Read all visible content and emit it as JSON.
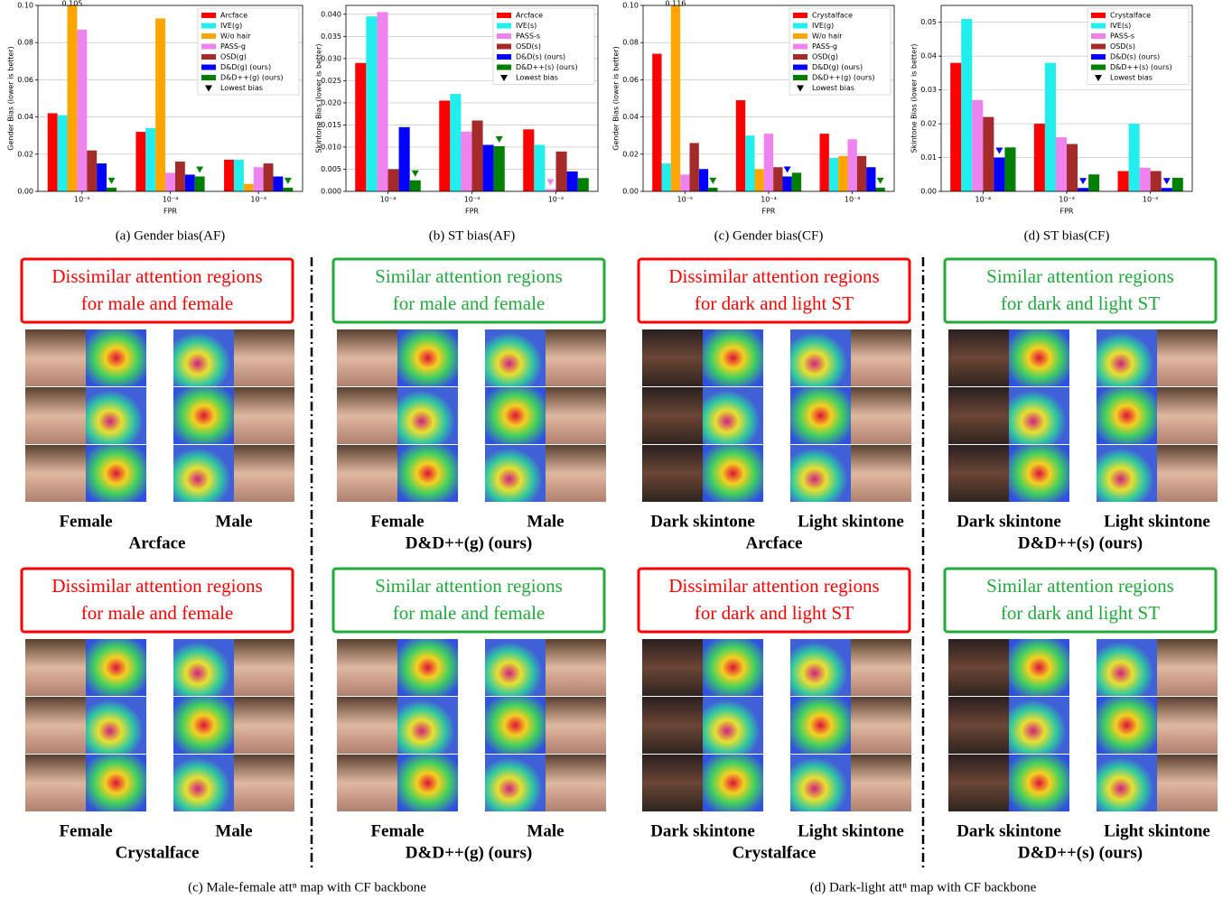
{
  "chart_data": [
    {
      "type": "bar",
      "caption": "(a) Gender bias(AF)",
      "xlabel": "FPR",
      "ylabel": "Gender Bias (lower is better)",
      "categories": [
        "10⁻⁵",
        "10⁻⁴",
        "10⁻³"
      ],
      "ylim": [
        0,
        0.1
      ],
      "yticks": [
        {
          "value": 0,
          "label": "0.00"
        },
        {
          "value": 0.02,
          "label": "0.02"
        },
        {
          "value": 0.04,
          "label": "0.04"
        },
        {
          "value": 0.06,
          "label": "0.06"
        },
        {
          "value": 0.08,
          "label": "0.08"
        },
        {
          "value": 0.1,
          "label": "0.10"
        }
      ],
      "grid": true,
      "legend": "upper right",
      "marker_label": "Lowest bias",
      "series": [
        {
          "name": "Arcface",
          "color": "#ff0000",
          "values": [
            0.042,
            0.032,
            0.017
          ]
        },
        {
          "name": "IVE(g)",
          "color": "#22eeee",
          "values": [
            0.041,
            0.034,
            0.017
          ]
        },
        {
          "name": "W/o hair",
          "color": "#ffa500",
          "values": [
            0.105,
            0.093,
            0.004
          ],
          "value_labels": [
            "0.105",
            null,
            null
          ]
        },
        {
          "name": "PASS-g",
          "color": "#ee82ee",
          "values": [
            0.087,
            0.01,
            0.013
          ]
        },
        {
          "name": "OSD(g)",
          "color": "#a52a2a",
          "values": [
            0.022,
            0.016,
            0.015
          ]
        },
        {
          "name": "D&D(g) (ours)",
          "color": "#0000ff",
          "values": [
            0.015,
            0.009,
            0.008
          ]
        },
        {
          "name": "D&D++(g) (ours)",
          "color": "#008000",
          "values": [
            0.002,
            0.008,
            0.002
          ]
        }
      ]
    },
    {
      "type": "bar",
      "caption": "(b) ST bias(AF)",
      "xlabel": "FPR",
      "ylabel": "Skintone Bias (lower is better)",
      "categories": [
        "10⁻⁴",
        "10⁻³",
        "10⁻²"
      ],
      "ylim": [
        0,
        0.042
      ],
      "yticks": [
        {
          "value": 0,
          "label": "0.000"
        },
        {
          "value": 0.005,
          "label": "0.005"
        },
        {
          "value": 0.01,
          "label": "0.010"
        },
        {
          "value": 0.015,
          "label": "0.015"
        },
        {
          "value": 0.02,
          "label": "0.020"
        },
        {
          "value": 0.025,
          "label": "0.025"
        },
        {
          "value": 0.03,
          "label": "0.030"
        },
        {
          "value": 0.035,
          "label": "0.035"
        },
        {
          "value": 0.04,
          "label": "0.040"
        }
      ],
      "grid": true,
      "legend": "upper right",
      "marker_label": "Lowest bias",
      "series": [
        {
          "name": "Arcface",
          "color": "#ff0000",
          "values": [
            0.029,
            0.0205,
            0.014
          ]
        },
        {
          "name": "IVE(s)",
          "color": "#22eeee",
          "values": [
            0.0395,
            0.022,
            0.0105
          ]
        },
        {
          "name": "PASS-s",
          "color": "#ee82ee",
          "values": [
            0.0405,
            0.0135,
            0.0005
          ]
        },
        {
          "name": "OSD(s)",
          "color": "#a52a2a",
          "values": [
            0.005,
            0.016,
            0.009
          ]
        },
        {
          "name": "D&D(s) (ours)",
          "color": "#0000ff",
          "values": [
            0.0145,
            0.0105,
            0.0045
          ]
        },
        {
          "name": "D&D++(s) (ours)",
          "color": "#008000",
          "values": [
            0.0025,
            0.0102,
            0.003
          ]
        }
      ]
    },
    {
      "type": "bar",
      "caption": "(c) Gender bias(CF)",
      "xlabel": "FPR",
      "ylabel": "Gender Bias (lower is better)",
      "categories": [
        "10⁻⁵",
        "10⁻⁴",
        "10⁻³"
      ],
      "ylim": [
        0,
        0.1
      ],
      "yticks": [
        {
          "value": 0,
          "label": "0.00"
        },
        {
          "value": 0.02,
          "label": "0.02"
        },
        {
          "value": 0.04,
          "label": "0.04"
        },
        {
          "value": 0.06,
          "label": "0.06"
        },
        {
          "value": 0.08,
          "label": "0.08"
        },
        {
          "value": 0.1,
          "label": "0.10"
        }
      ],
      "grid": true,
      "legend": "upper right",
      "marker_label": "Lowest bias",
      "series": [
        {
          "name": "Crystalface",
          "color": "#ff0000",
          "values": [
            0.074,
            0.049,
            0.031
          ]
        },
        {
          "name": "IVE(g)",
          "color": "#22eeee",
          "values": [
            0.015,
            0.03,
            0.018
          ]
        },
        {
          "name": "W/o hair",
          "color": "#ffa500",
          "values": [
            0.116,
            0.012,
            0.019
          ],
          "value_labels": [
            "0.116",
            null,
            null
          ]
        },
        {
          "name": "PASS-g",
          "color": "#ee82ee",
          "values": [
            0.009,
            0.031,
            0.028
          ]
        },
        {
          "name": "OSD(g)",
          "color": "#a52a2a",
          "values": [
            0.026,
            0.013,
            0.019
          ]
        },
        {
          "name": "D&D(g) (ours)",
          "color": "#0000ff",
          "values": [
            0.012,
            0.008,
            0.013
          ]
        },
        {
          "name": "D&D++(g) (ours)",
          "color": "#008000",
          "values": [
            0.002,
            0.01,
            0.002
          ]
        }
      ]
    },
    {
      "type": "bar",
      "caption": "(d) ST bias(CF)",
      "xlabel": "FPR",
      "ylabel": "Skintone Bias (lower is better)",
      "categories": [
        "10⁻⁴",
        "10⁻³",
        "10⁻²"
      ],
      "ylim": [
        0,
        0.055
      ],
      "yticks": [
        {
          "value": 0,
          "label": "0.00"
        },
        {
          "value": 0.01,
          "label": "0.01"
        },
        {
          "value": 0.02,
          "label": "0.02"
        },
        {
          "value": 0.03,
          "label": "0.03"
        },
        {
          "value": 0.04,
          "label": "0.04"
        },
        {
          "value": 0.05,
          "label": "0.05"
        }
      ],
      "grid": true,
      "legend": "upper right",
      "marker_label": "Lowest bias",
      "series": [
        {
          "name": "Crystalface",
          "color": "#ff0000",
          "values": [
            0.038,
            0.02,
            0.006
          ]
        },
        {
          "name": "IVE(s)",
          "color": "#22eeee",
          "values": [
            0.051,
            0.038,
            0.02
          ]
        },
        {
          "name": "PASS-s",
          "color": "#ee82ee",
          "values": [
            0.027,
            0.016,
            0.007
          ]
        },
        {
          "name": "OSD(s)",
          "color": "#a52a2a",
          "values": [
            0.022,
            0.014,
            0.006
          ]
        },
        {
          "name": "D&D(s) (ours)",
          "color": "#0000ff",
          "values": [
            0.01,
            0.001,
            0.001
          ]
        },
        {
          "name": "D&D++(s) (ours)",
          "color": "#008000",
          "values": [
            0.013,
            0.005,
            0.004
          ]
        }
      ]
    }
  ],
  "panels": [
    {
      "box_lines": [
        "Dissimilar attention regions",
        "for male and female"
      ],
      "box_color": "#ff0000",
      "left_label": "Female",
      "right_label": "Male",
      "model": "Arcface",
      "dark_left": false
    },
    {
      "box_lines": [
        "Similar attention regions",
        "for male and female"
      ],
      "box_color": "#1faa3a",
      "left_label": "Female",
      "right_label": "Male",
      "model": "D&D++(g) (ours)",
      "dark_left": false
    },
    {
      "box_lines": [
        "Dissimilar attention regions",
        "for dark and light ST"
      ],
      "box_color": "#ff0000",
      "left_label": "Dark skintone",
      "right_label": "Light skintone",
      "model": "Arcface",
      "dark_left": true
    },
    {
      "box_lines": [
        "Similar attention regions",
        "for dark and light ST"
      ],
      "box_color": "#1faa3a",
      "left_label": "Dark skintone",
      "right_label": "Light skintone",
      "model": "D&D++(s) (ours)",
      "dark_left": true
    },
    {
      "box_lines": [
        "Dissimilar attention regions",
        "for male and female"
      ],
      "box_color": "#ff0000",
      "left_label": "Female",
      "right_label": "Male",
      "model": "Crystalface",
      "dark_left": false
    },
    {
      "box_lines": [
        "Similar attention regions",
        "for male and female"
      ],
      "box_color": "#1faa3a",
      "left_label": "Female",
      "right_label": "Male",
      "model": "D&D++(g) (ours)",
      "dark_left": false
    },
    {
      "box_lines": [
        "Dissimilar attention regions",
        "for dark and light ST"
      ],
      "box_color": "#ff0000",
      "left_label": "Dark skintone",
      "right_label": "Light skintone",
      "model": "Crystalface",
      "dark_left": true
    },
    {
      "box_lines": [
        "Similar attention regions",
        "for dark and light ST"
      ],
      "box_color": "#1faa3a",
      "left_label": "Dark skintone",
      "right_label": "Light skintone",
      "model": "D&D++(s) (ours)",
      "dark_left": true
    }
  ],
  "captions": [
    "(c) Male-female attⁿ map with CF backbone",
    "(d) Dark-light attⁿ map with CF backbone"
  ]
}
